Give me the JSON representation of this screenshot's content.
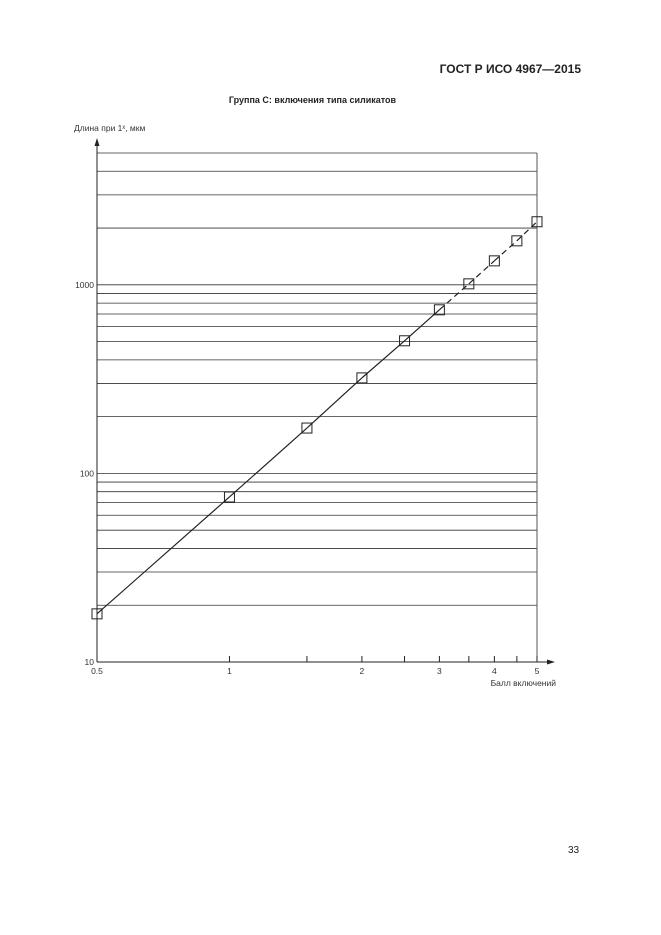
{
  "header": {
    "doc_id": "ГОСТ Р ИСО 4967—2015"
  },
  "page_number": "33",
  "chart_data": {
    "type": "line",
    "title": "Группа С: включения типа силикатов",
    "xlabel": "Балл включений",
    "ylabel": "Длина при 1ˣ, мкм",
    "xscale": "log",
    "yscale": "log",
    "xlim": [
      0.5,
      5
    ],
    "ylim": [
      10,
      5000
    ],
    "x_ticks": [
      0.5,
      1,
      1.5,
      2,
      2.5,
      3,
      3.5,
      4,
      4.5,
      5
    ],
    "x_tick_labels": [
      "0.5",
      "1",
      "",
      "2",
      "",
      "3",
      "",
      "4",
      "",
      "5"
    ],
    "y_tick_labels": [
      "10",
      "100",
      "1000"
    ],
    "y_gridlines": [
      20,
      30,
      40,
      50,
      60,
      70,
      80,
      90,
      100,
      200,
      300,
      400,
      500,
      600,
      700,
      800,
      900,
      1000,
      2000,
      3000,
      4000,
      5000
    ],
    "grid": "horizontal",
    "series": [
      {
        "marker": "square",
        "x": [
          0.5,
          1,
          1.5,
          2,
          2.5,
          3,
          3.5,
          4,
          4.5,
          5
        ],
        "y": [
          18,
          75,
          174,
          321,
          505,
          737,
          1012,
          1340,
          1711,
          2160
        ],
        "solid_until_x": 3,
        "dashed_after": true
      }
    ],
    "colors": {
      "line": "#222222",
      "grid": "#333333"
    }
  }
}
